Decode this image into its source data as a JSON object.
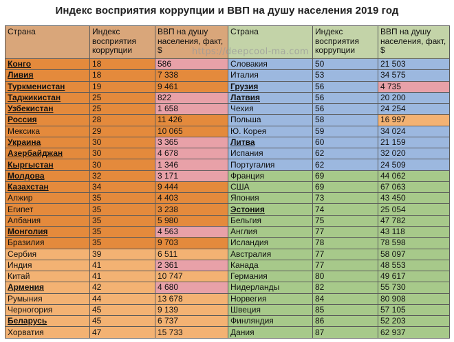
{
  "title": "Индекс восприятия коррупции и ВВП на душу населения  2019 год",
  "watermark": "https://deepcool-ma.com",
  "colors": {
    "header_left": "#d9a67a",
    "header_right": "#c3d3a8",
    "orange": "#e48a3c",
    "light_orange": "#f3b273",
    "pink": "#e8a1a8",
    "blue": "#9cb8df",
    "green": "#a7c98a"
  },
  "headers": {
    "country": "Страна",
    "cpi": "Индекс восприятия коррупции",
    "gdp": "ВВП на душу населения, факт, $"
  },
  "left": [
    {
      "country": "Конго",
      "cpi": "18",
      "gdp": "586",
      "row_color": "orange",
      "gdp_color": "pink",
      "underline": true
    },
    {
      "country": "Ливия",
      "cpi": "18",
      "gdp": "7 338",
      "row_color": "orange",
      "gdp_color": "orange",
      "underline": true
    },
    {
      "country": "Туркменистан",
      "cpi": "19",
      "gdp": "9 461",
      "row_color": "orange",
      "gdp_color": "orange",
      "underline": true
    },
    {
      "country": "Таджикистан",
      "cpi": "25",
      "gdp": "822",
      "row_color": "orange",
      "gdp_color": "pink",
      "underline": true
    },
    {
      "country": "Узбекистан",
      "cpi": "25",
      "gdp": "1 658",
      "row_color": "orange",
      "gdp_color": "pink",
      "underline": true
    },
    {
      "country": "Россия",
      "cpi": "28",
      "gdp": "11 426",
      "row_color": "orange",
      "gdp_color": "orange",
      "underline": true
    },
    {
      "country": "Мексика",
      "cpi": "29",
      "gdp": "10 065",
      "row_color": "orange",
      "gdp_color": "orange",
      "underline": false
    },
    {
      "country": "Украина",
      "cpi": "30",
      "gdp": "3 365",
      "row_color": "orange",
      "gdp_color": "pink",
      "underline": true
    },
    {
      "country": "Азербайджан",
      "cpi": "30",
      "gdp": "4 678",
      "row_color": "orange",
      "gdp_color": "pink",
      "underline": true
    },
    {
      "country": "Кыргыстан",
      "cpi": "30",
      "gdp": "1 346",
      "row_color": "orange",
      "gdp_color": "pink",
      "underline": true
    },
    {
      "country": "Молдова",
      "cpi": "32",
      "gdp": "3 171",
      "row_color": "orange",
      "gdp_color": "pink",
      "underline": true
    },
    {
      "country": "Казахстан",
      "cpi": "34",
      "gdp": "9 444",
      "row_color": "orange",
      "gdp_color": "orange",
      "underline": true
    },
    {
      "country": "Алжир",
      "cpi": "35",
      "gdp": "4 403",
      "row_color": "orange",
      "gdp_color": "orange",
      "underline": false
    },
    {
      "country": "Египет",
      "cpi": "35",
      "gdp": "3 238",
      "row_color": "orange",
      "gdp_color": "orange",
      "underline": false
    },
    {
      "country": "Албания",
      "cpi": "35",
      "gdp": "5 980",
      "row_color": "orange",
      "gdp_color": "orange",
      "underline": false
    },
    {
      "country": "Монголия",
      "cpi": "35",
      "gdp": "4 563",
      "row_color": "orange",
      "gdp_color": "pink",
      "underline": true
    },
    {
      "country": "Бразилия",
      "cpi": "35",
      "gdp": "9 703",
      "row_color": "orange",
      "gdp_color": "orange",
      "underline": false
    },
    {
      "country": "Сербия",
      "cpi": "39",
      "gdp": "6 511",
      "row_color": "light_orange",
      "gdp_color": "light_orange",
      "underline": false
    },
    {
      "country": "Индия",
      "cpi": "41",
      "gdp": "2 361",
      "row_color": "light_orange",
      "gdp_color": "pink",
      "underline": false
    },
    {
      "country": "Китай",
      "cpi": "41",
      "gdp": "10 747",
      "row_color": "light_orange",
      "gdp_color": "light_orange",
      "underline": false
    },
    {
      "country": "Армения",
      "cpi": "42",
      "gdp": "4 680",
      "row_color": "light_orange",
      "gdp_color": "pink",
      "underline": true
    },
    {
      "country": "Румыния",
      "cpi": "44",
      "gdp": "13 678",
      "row_color": "light_orange",
      "gdp_color": "light_orange",
      "underline": false
    },
    {
      "country": "Черногория",
      "cpi": "45",
      "gdp": "9 139",
      "row_color": "light_orange",
      "gdp_color": "light_orange",
      "underline": false
    },
    {
      "country": "Беларусь",
      "cpi": "45",
      "gdp": "6 737",
      "row_color": "light_orange",
      "gdp_color": "light_orange",
      "underline": true
    },
    {
      "country": "Хорватия",
      "cpi": "47",
      "gdp": "15 733",
      "row_color": "light_orange",
      "gdp_color": "light_orange",
      "underline": false
    }
  ],
  "right": [
    {
      "country": "Словакия",
      "cpi": "50",
      "gdp": "21 503",
      "row_color": "blue",
      "gdp_color": "blue",
      "underline": false
    },
    {
      "country": "Италия",
      "cpi": "53",
      "gdp": "34 575",
      "row_color": "blue",
      "gdp_color": "blue",
      "underline": false
    },
    {
      "country": "Грузия",
      "cpi": "56",
      "gdp": "4 735",
      "row_color": "blue",
      "gdp_color": "pink",
      "underline": true
    },
    {
      "country": "Латвия",
      "cpi": "56",
      "gdp": "20 200",
      "row_color": "blue",
      "gdp_color": "blue",
      "underline": true
    },
    {
      "country": "Чехия",
      "cpi": "56",
      "gdp": "24 254",
      "row_color": "blue",
      "gdp_color": "blue",
      "underline": false
    },
    {
      "country": "Польша",
      "cpi": "58",
      "gdp": "16 997",
      "row_color": "blue",
      "gdp_color": "light_orange",
      "underline": false
    },
    {
      "country": "Ю. Корея",
      "cpi": "59",
      "gdp": "34 024",
      "row_color": "blue",
      "gdp_color": "blue",
      "underline": false
    },
    {
      "country": "Литва",
      "cpi": "60",
      "gdp": "21 159",
      "row_color": "blue",
      "gdp_color": "blue",
      "underline": true
    },
    {
      "country": "Испания",
      "cpi": "62",
      "gdp": "32 020",
      "row_color": "blue",
      "gdp_color": "blue",
      "underline": false
    },
    {
      "country": "Португалия",
      "cpi": "62",
      "gdp": "24 509",
      "row_color": "blue",
      "gdp_color": "blue",
      "underline": false
    },
    {
      "country": "Франция",
      "cpi": "69",
      "gdp": "44 062",
      "row_color": "green",
      "gdp_color": "green",
      "underline": false
    },
    {
      "country": "США",
      "cpi": "69",
      "gdp": "67 063",
      "row_color": "green",
      "gdp_color": "green",
      "underline": false
    },
    {
      "country": "Япония",
      "cpi": "73",
      "gdp": "43 450",
      "row_color": "green",
      "gdp_color": "green",
      "underline": false
    },
    {
      "country": "Эстония",
      "cpi": "74",
      "gdp": "25 054",
      "row_color": "green",
      "gdp_color": "green",
      "underline": true
    },
    {
      "country": "Бельгия",
      "cpi": "75",
      "gdp": "47 782",
      "row_color": "green",
      "gdp_color": "green",
      "underline": false
    },
    {
      "country": "Англия",
      "cpi": "77",
      "gdp": "43 118",
      "row_color": "green",
      "gdp_color": "green",
      "underline": false
    },
    {
      "country": "Исландия",
      "cpi": "78",
      "gdp": "78 598",
      "row_color": "green",
      "gdp_color": "green",
      "underline": false
    },
    {
      "country": "Австралия",
      "cpi": "77",
      "gdp": "58 097",
      "row_color": "green",
      "gdp_color": "green",
      "underline": false
    },
    {
      "country": "Канада",
      "cpi": "77",
      "gdp": "48 553",
      "row_color": "green",
      "gdp_color": "green",
      "underline": false
    },
    {
      "country": "Германия",
      "cpi": "80",
      "gdp": "49 617",
      "row_color": "green",
      "gdp_color": "green",
      "underline": false
    },
    {
      "country": "Нидерланды",
      "cpi": "82",
      "gdp": "55 730",
      "row_color": "green",
      "gdp_color": "green",
      "underline": false
    },
    {
      "country": "Норвегия",
      "cpi": "84",
      "gdp": "80 908",
      "row_color": "green",
      "gdp_color": "green",
      "underline": false
    },
    {
      "country": "Швеция",
      "cpi": "85",
      "gdp": "57 105",
      "row_color": "green",
      "gdp_color": "green",
      "underline": false
    },
    {
      "country": "Финляндия",
      "cpi": "86",
      "gdp": "52 203",
      "row_color": "green",
      "gdp_color": "green",
      "underline": false
    },
    {
      "country": "Дания",
      "cpi": "87",
      "gdp": "62 937",
      "row_color": "green",
      "gdp_color": "green",
      "underline": false
    }
  ]
}
